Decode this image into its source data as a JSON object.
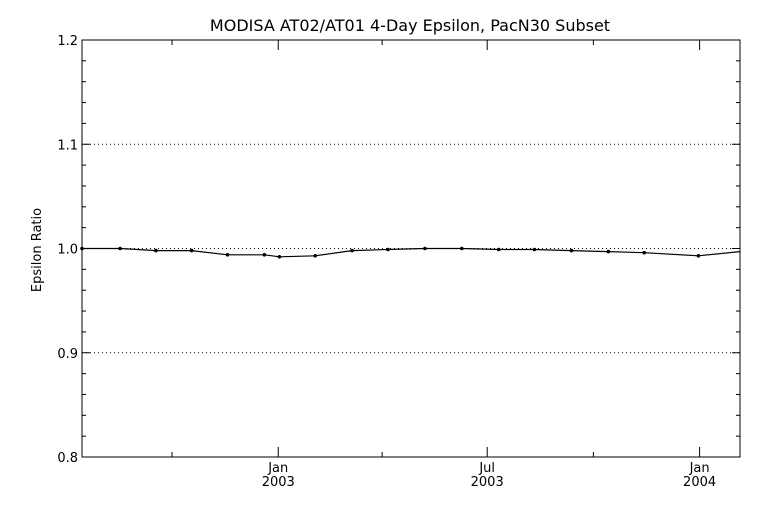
{
  "chart_data": {
    "type": "line",
    "title": "MODISA AT02/AT01 4-Day Epsilon, PacN30 Subset",
    "ylabel": "Epsilon Ratio",
    "xlabel": "",
    "ylim": [
      0.8,
      1.2
    ],
    "yticks": [
      "0.8",
      "0.9",
      "1.0",
      "1.1",
      "1.2"
    ],
    "xlim": [
      "2002-07-15",
      "2004-02-05"
    ],
    "xticks": [
      {
        "date": "2003-01-01",
        "month": "Jan",
        "year": "2003"
      },
      {
        "date": "2003-07-01",
        "month": "Jul",
        "year": "2003"
      },
      {
        "date": "2004-01-01",
        "month": "Jan",
        "year": "2004"
      }
    ],
    "minor_xticks": [
      "2002-10-01",
      "2003-04-01",
      "2003-10-01"
    ],
    "grid": "horizontal-dotted",
    "series": [
      {
        "x": [
          "2002-07-15",
          "2002-08-17",
          "2002-09-17",
          "2002-10-18",
          "2002-11-18",
          "2002-12-20",
          "2003-01-02",
          "2003-02-02",
          "2003-03-06",
          "2003-04-06",
          "2003-05-08",
          "2003-06-09",
          "2003-07-11",
          "2003-08-11",
          "2003-09-12",
          "2003-10-14",
          "2003-11-14",
          "2003-12-31",
          "2004-02-05"
        ],
        "values": [
          1.0,
          1.0,
          0.998,
          0.998,
          0.994,
          0.994,
          0.992,
          0.993,
          0.998,
          0.999,
          1.0,
          1.0,
          0.999,
          0.999,
          0.998,
          0.997,
          0.996,
          0.993,
          0.997
        ],
        "markers": [
          true,
          true,
          true,
          true,
          true,
          true,
          true,
          true,
          true,
          true,
          true,
          true,
          true,
          true,
          true,
          true,
          true,
          true,
          false
        ]
      }
    ]
  }
}
